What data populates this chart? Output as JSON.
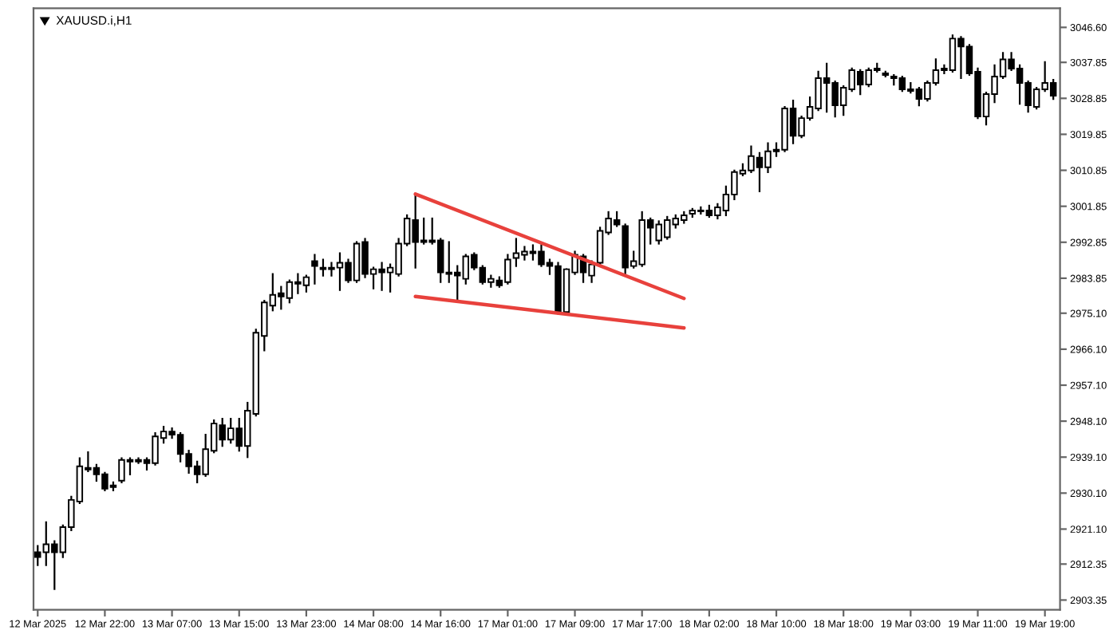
{
  "chart_data": {
    "type": "candlestick",
    "title": "XAUUSD.i,H1",
    "categories": [
      "12 Mar 2025",
      null,
      null,
      null,
      null,
      null,
      null,
      null,
      "12 Mar 22:00",
      null,
      null,
      null,
      null,
      null,
      null,
      null,
      "13 Mar 07:00",
      null,
      null,
      null,
      null,
      null,
      null,
      null,
      "13 Mar 15:00",
      null,
      null,
      null,
      null,
      null,
      null,
      null,
      "13 Mar 23:00",
      null,
      null,
      null,
      null,
      null,
      null,
      null,
      "14 Mar 08:00",
      null,
      null,
      null,
      null,
      null,
      null,
      null,
      "14 Mar 16:00",
      null,
      null,
      null,
      null,
      null,
      null,
      null,
      "17 Mar 01:00",
      null,
      null,
      null,
      null,
      null,
      null,
      null,
      "17 Mar 09:00",
      null,
      null,
      null,
      null,
      null,
      null,
      null,
      "17 Mar 17:00",
      null,
      null,
      null,
      null,
      null,
      null,
      null,
      "18 Mar 02:00",
      null,
      null,
      null,
      null,
      null,
      null,
      null,
      "18 Mar 10:00",
      null,
      null,
      null,
      null,
      null,
      null,
      null,
      "18 Mar 18:00",
      null,
      null,
      null,
      null,
      null,
      null,
      null,
      "19 Mar 03:00",
      null,
      null,
      null,
      null,
      null,
      null,
      null,
      "19 Mar 11:00",
      null,
      null,
      null,
      null,
      null,
      null,
      null,
      "19 Mar 19:00",
      null
    ],
    "ohlc": [
      [
        2915.3,
        2916.9,
        2912.1,
        2914.1
      ],
      [
        2915.3,
        2922.8,
        2912.1,
        2917.3
      ],
      [
        2917.3,
        2918.1,
        2906.1,
        2915.3
      ],
      [
        2915.3,
        2922.0,
        2914.1,
        2921.6
      ],
      [
        2921.6,
        2929.2,
        2920.8,
        2928.4
      ],
      [
        2928.0,
        2938.8,
        2927.6,
        2936.8
      ],
      [
        2936.4,
        2940.3,
        2935.6,
        2936.0
      ],
      [
        2936.4,
        2937.2,
        2933.2,
        2934.8
      ],
      [
        2934.8,
        2935.2,
        2930.8,
        2931.2
      ],
      [
        2931.6,
        2932.8,
        2930.8,
        2932.0
      ],
      [
        2933.2,
        2938.8,
        2932.8,
        2938.4
      ],
      [
        2938.0,
        2938.8,
        2934.8,
        2938.4
      ],
      [
        2938.0,
        2938.8,
        2937.6,
        2938.4
      ],
      [
        2938.4,
        2938.8,
        2936.0,
        2937.6
      ],
      [
        2937.6,
        2945.1,
        2937.2,
        2944.3
      ],
      [
        2943.9,
        2946.7,
        2942.7,
        2945.5
      ],
      [
        2945.5,
        2946.3,
        2943.9,
        2944.7
      ],
      [
        2944.7,
        2945.1,
        2938.0,
        2939.9
      ],
      [
        2939.9,
        2940.7,
        2935.2,
        2936.8
      ],
      [
        2936.8,
        2938.0,
        2932.8,
        2934.8
      ],
      [
        2934.8,
        2944.7,
        2934.4,
        2941.1
      ],
      [
        2940.7,
        2948.3,
        2940.3,
        2947.5
      ],
      [
        2947.1,
        2948.7,
        2941.9,
        2943.5
      ],
      [
        2943.5,
        2948.7,
        2942.7,
        2946.3
      ],
      [
        2946.3,
        2948.7,
        2940.7,
        2941.9
      ],
      [
        2941.9,
        2952.7,
        2939.1,
        2950.7
      ],
      [
        2949.9,
        2971.0,
        2949.5,
        2970.2
      ],
      [
        2969.4,
        2978.2,
        2965.8,
        2977.8
      ],
      [
        2977.0,
        2984.9,
        2975.8,
        2979.7
      ],
      [
        2980.1,
        2981.7,
        2976.2,
        2979.3
      ],
      [
        2978.9,
        2983.3,
        2977.8,
        2982.9
      ],
      [
        2982.9,
        2984.9,
        2980.1,
        2982.5
      ],
      [
        2982.1,
        2984.5,
        2980.5,
        2984.1
      ],
      [
        2988.1,
        2989.7,
        2982.5,
        2986.9
      ],
      [
        2986.5,
        2988.5,
        2984.5,
        2986.1
      ],
      [
        2986.5,
        2987.7,
        2984.5,
        2986.1
      ],
      [
        2986.5,
        2990.1,
        2980.9,
        2987.7
      ],
      [
        2987.7,
        2988.5,
        2982.9,
        2983.3
      ],
      [
        2983.3,
        2992.9,
        2982.9,
        2992.5
      ],
      [
        2992.9,
        2993.7,
        2984.1,
        2984.9
      ],
      [
        2984.9,
        2986.5,
        2981.3,
        2986.1
      ],
      [
        2986.1,
        2987.7,
        2980.9,
        2985.3
      ],
      [
        2985.3,
        2987.3,
        2980.5,
        2986.5
      ],
      [
        2984.9,
        2993.7,
        2984.5,
        2992.5
      ],
      [
        2992.5,
        2999.6,
        2992.1,
        2998.8
      ],
      [
        2998.4,
        3004.8,
        2986.5,
        2992.9
      ],
      [
        2993.3,
        2998.8,
        2992.5,
        2992.9
      ],
      [
        2993.3,
        2998.8,
        2992.5,
        2992.9
      ],
      [
        2993.3,
        2993.7,
        2982.9,
        2985.3
      ],
      [
        2985.3,
        2992.9,
        2982.9,
        2984.9
      ],
      [
        2985.3,
        2986.9,
        2978.5,
        2984.5
      ],
      [
        2983.7,
        2989.7,
        2982.5,
        2989.3
      ],
      [
        2989.7,
        2990.1,
        2986.1,
        2986.5
      ],
      [
        2986.5,
        2986.9,
        2982.5,
        2982.9
      ],
      [
        2982.9,
        2984.5,
        2981.7,
        2983.7
      ],
      [
        2983.3,
        2984.1,
        2981.7,
        2982.1
      ],
      [
        2982.9,
        2989.7,
        2982.5,
        2988.5
      ],
      [
        2988.9,
        2993.7,
        2986.9,
        2990.1
      ],
      [
        2989.7,
        2991.7,
        2988.5,
        2990.5
      ],
      [
        2990.5,
        2992.1,
        2988.5,
        2990.1
      ],
      [
        2990.5,
        2992.1,
        2986.9,
        2987.3
      ],
      [
        2987.7,
        2988.5,
        2984.9,
        2986.9
      ],
      [
        2986.9,
        2987.7,
        2975.0,
        2975.4
      ],
      [
        2975.4,
        2986.1,
        2975.0,
        2986.1
      ],
      [
        2985.3,
        2990.5,
        2984.9,
        2989.7
      ],
      [
        2989.3,
        2989.7,
        2982.9,
        2985.3
      ],
      [
        2984.5,
        2988.1,
        2982.9,
        2987.3
      ],
      [
        2987.7,
        2996.5,
        2987.3,
        2995.7
      ],
      [
        2995.3,
        3000.4,
        2994.9,
        2998.8
      ],
      [
        2998.4,
        3000.4,
        2996.9,
        2997.3
      ],
      [
        2996.9,
        2997.3,
        2984.9,
        2986.5
      ],
      [
        2986.9,
        2990.5,
        2986.5,
        2988.1
      ],
      [
        2987.3,
        3000.4,
        2986.9,
        2998.4
      ],
      [
        2998.4,
        2998.8,
        2992.5,
        2996.5
      ],
      [
        2993.3,
        2998.1,
        2992.5,
        2997.3
      ],
      [
        2994.1,
        2999.2,
        2993.7,
        2998.4
      ],
      [
        2997.3,
        2999.6,
        2996.5,
        2998.8
      ],
      [
        2998.4,
        3000.4,
        2997.7,
        2999.6
      ],
      [
        3000.0,
        3001.2,
        2999.2,
        3000.8
      ],
      [
        3000.8,
        3001.6,
        3000.0,
        3000.6
      ],
      [
        3000.8,
        3002.0,
        2999.2,
        2999.6
      ],
      [
        2999.6,
        3002.4,
        2998.8,
        3001.6
      ],
      [
        3000.8,
        3006.8,
        2999.6,
        3004.8
      ],
      [
        3004.8,
        3010.8,
        3003.6,
        3010.4
      ],
      [
        3010.0,
        3012.4,
        3009.6,
        3010.8
      ],
      [
        3010.8,
        3016.8,
        3010.4,
        3014.4
      ],
      [
        3014.0,
        3015.2,
        3005.6,
        3011.6
      ],
      [
        3011.6,
        3017.6,
        3010.4,
        3015.6
      ],
      [
        3015.6,
        3017.6,
        3014.4,
        3016.0
      ],
      [
        3016.0,
        3026.7,
        3015.6,
        3026.3
      ],
      [
        3026.3,
        3028.3,
        3017.6,
        3019.5
      ],
      [
        3019.5,
        3024.3,
        3019.1,
        3023.9
      ],
      [
        3023.9,
        3029.1,
        3023.5,
        3026.7
      ],
      [
        3026.3,
        3035.5,
        3025.9,
        3033.9
      ],
      [
        3033.9,
        3037.5,
        3025.5,
        3032.7
      ],
      [
        3032.7,
        3033.1,
        3024.3,
        3027.1
      ],
      [
        3027.1,
        3031.9,
        3024.7,
        3031.5
      ],
      [
        3031.1,
        3036.3,
        3030.7,
        3035.9
      ],
      [
        3035.5,
        3035.9,
        3029.9,
        3032.3
      ],
      [
        3032.3,
        3036.3,
        3031.9,
        3035.9
      ],
      [
        3035.9,
        3037.5,
        3035.5,
        3036.3
      ],
      [
        3035.1,
        3035.5,
        3034.3,
        3034.7
      ],
      [
        3034.3,
        3034.7,
        3032.3,
        3033.9
      ],
      [
        3033.9,
        3034.3,
        3030.7,
        3031.1
      ],
      [
        3031.1,
        3032.7,
        3030.3,
        3030.7
      ],
      [
        3031.1,
        3031.5,
        3027.1,
        3028.7
      ],
      [
        3028.7,
        3033.1,
        3028.3,
        3032.7
      ],
      [
        3032.7,
        3038.6,
        3032.3,
        3035.9
      ],
      [
        3035.9,
        3037.1,
        3035.1,
        3036.3
      ],
      [
        3035.9,
        3044.6,
        3035.5,
        3043.8
      ],
      [
        3043.8,
        3044.2,
        3033.9,
        3041.8
      ],
      [
        3041.8,
        3042.2,
        3034.7,
        3035.1
      ],
      [
        3035.5,
        3036.3,
        3023.9,
        3024.3
      ],
      [
        3024.3,
        3030.3,
        3022.3,
        3029.9
      ],
      [
        3029.9,
        3037.1,
        3027.9,
        3034.3
      ],
      [
        3034.3,
        3040.2,
        3033.9,
        3038.6
      ],
      [
        3038.6,
        3040.2,
        3035.9,
        3036.3
      ],
      [
        3036.3,
        3037.1,
        3027.5,
        3032.7
      ],
      [
        3032.7,
        3033.1,
        3025.5,
        3027.1
      ],
      [
        3026.7,
        3031.5,
        3026.3,
        3031.1
      ],
      [
        3031.1,
        3037.9,
        3030.7,
        3032.7
      ],
      [
        3032.7,
        3033.5,
        3028.7,
        3029.5
      ]
    ],
    "series": [
      {
        "type": "line",
        "color": "#e8413c",
        "values": [
          null,
          null,
          null,
          null,
          null,
          null,
          null,
          null,
          null,
          null,
          null,
          null,
          null,
          null,
          null,
          null,
          null,
          null,
          null,
          null,
          null,
          null,
          null,
          null,
          null,
          null,
          null,
          null,
          null,
          null,
          null,
          null,
          null,
          null,
          null,
          null,
          null,
          null,
          null,
          null,
          null,
          null,
          null,
          null,
          null,
          3004.9,
          null,
          null,
          null,
          null,
          null,
          null,
          null,
          null,
          null,
          null,
          null,
          null,
          null,
          null,
          null,
          null,
          null,
          null,
          null,
          null,
          null,
          null,
          null,
          null,
          null,
          null,
          null,
          null,
          null,
          null,
          null,
          2978.8,
          null,
          null,
          null,
          null,
          null,
          null,
          null,
          null,
          null,
          null,
          null,
          null,
          null,
          null,
          null,
          null,
          null,
          null,
          null,
          null,
          null,
          null,
          null,
          null,
          null,
          null,
          null,
          null,
          null,
          null,
          null,
          null,
          null,
          null,
          null,
          null,
          null,
          null,
          null,
          null,
          null,
          null,
          null,
          null
        ]
      },
      {
        "type": "line",
        "color": "#e8413c",
        "values": [
          null,
          null,
          null,
          null,
          null,
          null,
          null,
          null,
          null,
          null,
          null,
          null,
          null,
          null,
          null,
          null,
          null,
          null,
          null,
          null,
          null,
          null,
          null,
          null,
          null,
          null,
          null,
          null,
          null,
          null,
          null,
          null,
          null,
          null,
          null,
          null,
          null,
          null,
          null,
          null,
          null,
          null,
          null,
          null,
          null,
          2979.3,
          null,
          null,
          null,
          null,
          null,
          null,
          null,
          null,
          null,
          null,
          null,
          null,
          null,
          null,
          null,
          null,
          null,
          null,
          null,
          null,
          null,
          null,
          null,
          null,
          null,
          null,
          null,
          null,
          null,
          null,
          null,
          2971.4,
          null,
          null,
          null,
          null,
          null,
          null,
          null,
          null,
          null,
          null,
          null,
          null,
          null,
          null,
          null,
          null,
          null,
          null,
          null,
          null,
          null,
          null,
          null,
          null,
          null,
          null,
          null,
          null,
          null,
          null,
          null,
          null,
          null,
          null,
          null,
          null,
          null,
          null,
          null,
          null,
          null,
          null,
          null,
          null
        ]
      }
    ],
    "ylim": [
      2900.9,
      3051.4
    ],
    "yticks": [
      {
        "value": 2903.35,
        "label": "2903.35"
      },
      {
        "value": 2912.35,
        "label": "2912.35"
      },
      {
        "value": 2921.1,
        "label": "2921.10"
      },
      {
        "value": 2930.1,
        "label": "2930.10"
      },
      {
        "value": 2939.1,
        "label": "2939.10"
      },
      {
        "value": 2948.1,
        "label": "2948.10"
      },
      {
        "value": 2957.1,
        "label": "2957.10"
      },
      {
        "value": 2966.1,
        "label": "2966.10"
      },
      {
        "value": 2975.1,
        "label": "2975.10"
      },
      {
        "value": 2983.85,
        "label": "2983.85"
      },
      {
        "value": 2992.85,
        "label": "2992.85"
      },
      {
        "value": 3001.85,
        "label": "3001.85"
      },
      {
        "value": 3010.85,
        "label": "3010.85"
      },
      {
        "value": 3019.85,
        "label": "3019.85"
      },
      {
        "value": 3028.85,
        "label": "3028.85"
      },
      {
        "value": 3037.85,
        "label": "3037.85"
      },
      {
        "value": 3046.6,
        "label": "3046.60"
      }
    ],
    "grid": false,
    "legend": false
  }
}
